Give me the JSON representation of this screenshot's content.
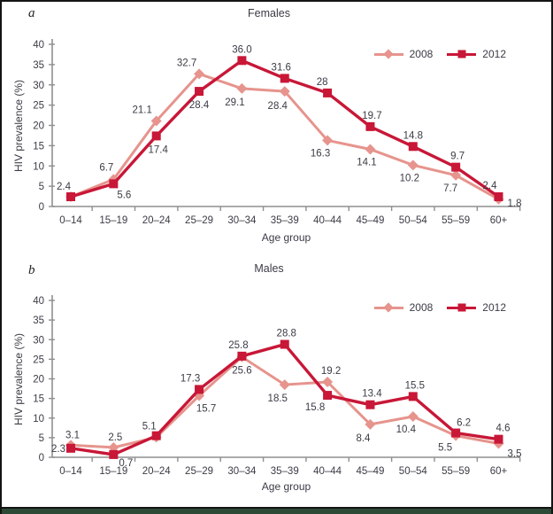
{
  "figure": {
    "colors": {
      "series_2008": "#e6948d",
      "series_2012": "#c81737",
      "axis": "#8f8f8f",
      "text": "#3b3b46",
      "bottom_bar": "#2d4a36"
    }
  },
  "chart_data": [
    {
      "type": "line",
      "panel": "a",
      "title": "Females",
      "xlabel": "Age group",
      "ylabel": "HIV prevalence (%)",
      "ylim": [
        0,
        40
      ],
      "ytick_step": 5,
      "grid": false,
      "legend_position": "top-right",
      "categories": [
        "0–14",
        "15–19",
        "20–24",
        "25–29",
        "30–34",
        "35–39",
        "40–44",
        "45–49",
        "50–54",
        "55–59",
        "60+"
      ],
      "series": [
        {
          "name": "2008",
          "marker": "diamond",
          "color": "#e6948d",
          "values": [
            2.4,
            6.7,
            21.1,
            32.7,
            29.1,
            28.4,
            16.3,
            14.1,
            10.2,
            7.7,
            1.8
          ],
          "labels": [
            null,
            {
              "t": "6.7",
              "dx": -8,
              "dy": -10
            },
            {
              "t": "21.1",
              "dx": -16,
              "dy": -9
            },
            {
              "t": "32.7",
              "dx": -14,
              "dy": -9
            },
            {
              "t": "29.1",
              "dx": -8,
              "dy": 19
            },
            {
              "t": "28.4",
              "dx": -8,
              "dy": 20
            },
            {
              "t": "16.3",
              "dx": -8,
              "dy": 18
            },
            {
              "t": "14.1",
              "dx": -4,
              "dy": 18
            },
            {
              "t": "10.2",
              "dx": -4,
              "dy": 18
            },
            {
              "t": "7.7",
              "dx": -6,
              "dy": 18
            },
            {
              "t": "1.8",
              "dx": 18,
              "dy": 8
            }
          ]
        },
        {
          "name": "2012",
          "marker": "square",
          "color": "#c81737",
          "values": [
            2.4,
            5.6,
            17.4,
            28.4,
            36.0,
            31.6,
            28,
            19.7,
            14.8,
            9.7,
            2.4
          ],
          "labels": [
            {
              "t": "2.4",
              "dx": -8,
              "dy": -8
            },
            {
              "t": "5.6",
              "dx": 12,
              "dy": 16
            },
            {
              "t": "17.4",
              "dx": 2,
              "dy": 19
            },
            {
              "t": "28.4",
              "dx": 0,
              "dy": 19
            },
            {
              "t": "36.0",
              "dx": 0,
              "dy": -9
            },
            {
              "t": "31.6",
              "dx": -4,
              "dy": -9
            },
            {
              "t": "28",
              "dx": -6,
              "dy": -9
            },
            {
              "t": "19.7",
              "dx": 2,
              "dy": -9
            },
            {
              "t": "14.8",
              "dx": 0,
              "dy": -9
            },
            {
              "t": "9.7",
              "dx": 2,
              "dy": -9
            },
            {
              "t": "2.4",
              "dx": -10,
              "dy": -9
            }
          ]
        }
      ]
    },
    {
      "type": "line",
      "panel": "b",
      "title": "Males",
      "xlabel": "Age group",
      "ylabel": "HIV prevalence (%)",
      "ylim": [
        0,
        40
      ],
      "ytick_step": 5,
      "grid": false,
      "legend_position": "top-right",
      "categories": [
        "0–14",
        "15–19",
        "20–24",
        "25–29",
        "30–34",
        "35–39",
        "40–44",
        "45–49",
        "50–54",
        "55–59",
        "60+"
      ],
      "series": [
        {
          "name": "2008",
          "marker": "diamond",
          "color": "#e6948d",
          "values": [
            3.1,
            2.5,
            5.1,
            15.7,
            25.6,
            18.5,
            19.2,
            8.4,
            10.4,
            5.5,
            3.5
          ],
          "labels": [
            {
              "t": "3.1",
              "dx": 2,
              "dy": -8
            },
            {
              "t": "2.5",
              "dx": 2,
              "dy": -8
            },
            {
              "t": "5.1",
              "dx": -8,
              "dy": -9
            },
            {
              "t": "15.7",
              "dx": 8,
              "dy": 18
            },
            {
              "t": "25.6",
              "dx": 0,
              "dy": 19
            },
            {
              "t": "18.5",
              "dx": -8,
              "dy": 19
            },
            {
              "t": "19.2",
              "dx": 4,
              "dy": -9
            },
            {
              "t": "8.4",
              "dx": -8,
              "dy": 19
            },
            {
              "t": "10.4",
              "dx": -8,
              "dy": 18
            },
            {
              "t": "5.5",
              "dx": -12,
              "dy": 17
            },
            {
              "t": "3.5",
              "dx": 18,
              "dy": 15
            }
          ]
        },
        {
          "name": "2012",
          "marker": "square",
          "color": "#c81737",
          "values": [
            2.3,
            0.7,
            5.5,
            17.3,
            25.8,
            28.8,
            15.8,
            13.4,
            15.5,
            6.2,
            4.6
          ],
          "labels": [
            {
              "t": "2.3",
              "dx": -14,
              "dy": 4
            },
            {
              "t": "0.7",
              "dx": 14,
              "dy": 13
            },
            null,
            {
              "t": "17.3",
              "dx": -10,
              "dy": -9
            },
            {
              "t": "25.8",
              "dx": -4,
              "dy": -9
            },
            {
              "t": "28.8",
              "dx": 2,
              "dy": -9
            },
            {
              "t": "15.8",
              "dx": -14,
              "dy": 17
            },
            {
              "t": "13.4",
              "dx": 2,
              "dy": -9
            },
            {
              "t": "15.5",
              "dx": 2,
              "dy": -9
            },
            {
              "t": "6.2",
              "dx": 9,
              "dy": -8
            },
            {
              "t": "4.6",
              "dx": 5,
              "dy": -9
            }
          ]
        }
      ]
    }
  ]
}
